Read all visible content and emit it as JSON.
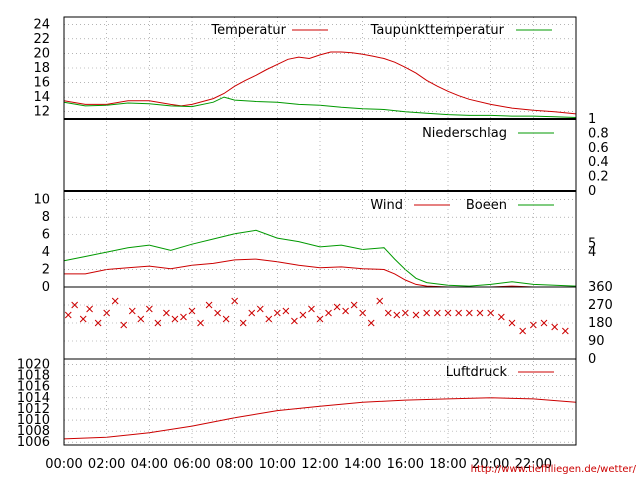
{
  "footer_url": "http://www.tiefflliegen.de/wetter/",
  "colors": {
    "red": "#cc0000",
    "green": "#009900",
    "grid": "#888888",
    "frame": "#000000"
  },
  "x_axis": {
    "range_hours": [
      0,
      24
    ],
    "tick_labels": [
      "00:00",
      "02:00",
      "04:00",
      "06:00",
      "08:00",
      "10:00",
      "12:00",
      "14:00",
      "16:00",
      "18:00",
      "20:00",
      "22:00"
    ]
  },
  "chart_data": [
    {
      "panel": "temperature",
      "type": "line",
      "ylim": [
        11,
        25
      ],
      "yticks": [
        12,
        14,
        16,
        18,
        20,
        22,
        24
      ],
      "legend_placement": "top",
      "series": [
        {
          "name": "Temperatur",
          "color": "red",
          "x": [
            0,
            1,
            2,
            3,
            4,
            5,
            5.5,
            6,
            6.5,
            7,
            7.5,
            8,
            8.5,
            9,
            9.5,
            10,
            10.5,
            11,
            11.5,
            12,
            12.5,
            13,
            13.5,
            14,
            14.5,
            15,
            15.5,
            16,
            16.5,
            17,
            17.5,
            18,
            18.5,
            19,
            20,
            21,
            22,
            23,
            24
          ],
          "y": [
            13.5,
            13.0,
            13.0,
            13.5,
            13.5,
            13.0,
            12.8,
            13.0,
            13.4,
            13.8,
            14.5,
            15.5,
            16.3,
            17.0,
            17.8,
            18.5,
            19.2,
            19.5,
            19.3,
            19.8,
            20.2,
            20.2,
            20.1,
            19.9,
            19.6,
            19.3,
            18.8,
            18.1,
            17.3,
            16.3,
            15.5,
            14.8,
            14.2,
            13.7,
            13.0,
            12.5,
            12.2,
            12.0,
            11.7
          ]
        },
        {
          "name": "Taupunkttemperatur",
          "color": "green",
          "x": [
            0,
            1,
            2,
            3,
            4,
            5,
            6,
            7,
            7.5,
            8,
            9,
            10,
            11,
            12,
            13,
            14,
            15,
            16,
            17,
            18,
            19,
            20,
            21,
            22,
            23,
            24
          ],
          "y": [
            13.3,
            12.8,
            12.9,
            13.2,
            13.1,
            12.8,
            12.7,
            13.3,
            14.0,
            13.6,
            13.4,
            13.3,
            13.0,
            12.9,
            12.6,
            12.4,
            12.3,
            12.0,
            11.8,
            11.6,
            11.5,
            11.5,
            11.4,
            11.4,
            11.3,
            11.2
          ]
        }
      ]
    },
    {
      "panel": "precipitation",
      "type": "line",
      "ylim": [
        0,
        1
      ],
      "yticks": [
        "0",
        "0.2",
        "0.4",
        "0.6",
        "0.8",
        "1"
      ],
      "series": [
        {
          "name": "Niederschlag",
          "color": "green",
          "x": [
            0,
            24
          ],
          "y": [
            0,
            0
          ]
        }
      ]
    },
    {
      "panel": "wind",
      "type": "line",
      "ylim": [
        0,
        11
      ],
      "yticks_left": [
        0,
        2,
        4,
        6,
        8,
        10
      ],
      "yticks_right": [
        4,
        5
      ],
      "series": [
        {
          "name": "Wind",
          "color": "red",
          "x": [
            0,
            1,
            2,
            3,
            4,
            5,
            6,
            7,
            8,
            9,
            10,
            11,
            12,
            13,
            14,
            15,
            15.5,
            16,
            16.5,
            17,
            18,
            19,
            20,
            21,
            22,
            23,
            24
          ],
          "y": [
            1.5,
            1.5,
            2,
            2.2,
            2.4,
            2.1,
            2.5,
            2.7,
            3.1,
            3.2,
            2.9,
            2.5,
            2.2,
            2.3,
            2.1,
            2.0,
            1.5,
            0.8,
            0.3,
            0.1,
            0,
            0,
            0,
            0.1,
            0,
            0,
            0
          ]
        },
        {
          "name": "Boeen",
          "color": "green",
          "x": [
            0,
            1,
            2,
            3,
            4,
            5,
            6,
            7,
            8,
            9,
            10,
            11,
            12,
            13,
            14,
            15,
            15.5,
            16,
            16.5,
            17,
            18,
            19,
            20,
            21,
            22,
            23,
            24
          ],
          "y": [
            3,
            3.5,
            4,
            4.5,
            4.8,
            4.2,
            4.9,
            5.5,
            6.1,
            6.5,
            5.6,
            5.2,
            4.6,
            4.8,
            4.3,
            4.5,
            3.2,
            2.0,
            1.0,
            0.5,
            0.2,
            0.1,
            0.3,
            0.6,
            0.3,
            0.2,
            0.1
          ]
        }
      ]
    },
    {
      "panel": "wind_direction",
      "type": "scatter",
      "ylim": [
        0,
        360
      ],
      "yticks_right": [
        0,
        90,
        180,
        270,
        360
      ],
      "series": [
        {
          "name": "",
          "color": "red",
          "marker": "x",
          "x": [
            0.2,
            0.5,
            0.9,
            1.2,
            1.6,
            2.0,
            2.4,
            2.8,
            3.2,
            3.6,
            4.0,
            4.4,
            4.8,
            5.2,
            5.6,
            6.0,
            6.4,
            6.8,
            7.2,
            7.6,
            8.0,
            8.4,
            8.8,
            9.2,
            9.6,
            10.0,
            10.4,
            10.8,
            11.2,
            11.6,
            12.0,
            12.4,
            12.8,
            13.2,
            13.6,
            14.0,
            14.4,
            14.8,
            15.2,
            15.6,
            16.0,
            16.5,
            17.0,
            17.5,
            18.0,
            18.5,
            19.0,
            19.5,
            20.0,
            20.5,
            21.0,
            21.5,
            22.0,
            22.5,
            23.0,
            23.5
          ],
          "y": [
            220,
            270,
            200,
            250,
            180,
            230,
            290,
            170,
            240,
            200,
            250,
            180,
            230,
            200,
            210,
            240,
            180,
            270,
            230,
            200,
            290,
            180,
            230,
            250,
            200,
            230,
            240,
            190,
            220,
            250,
            200,
            230,
            260,
            240,
            270,
            230,
            180,
            290,
            230,
            220,
            230,
            220,
            230,
            230,
            230,
            230,
            230,
            230,
            230,
            210,
            180,
            140,
            170,
            180,
            160,
            140
          ]
        }
      ]
    },
    {
      "panel": "pressure",
      "type": "line",
      "ylim": [
        1005.5,
        1021
      ],
      "yticks": [
        1006,
        1008,
        1010,
        1012,
        1014,
        1016,
        1018,
        1020
      ],
      "series": [
        {
          "name": "Luftdruck",
          "color": "red",
          "x": [
            0,
            2,
            4,
            6,
            8,
            10,
            12,
            14,
            16,
            18,
            20,
            22,
            24
          ],
          "y": [
            1006.6,
            1006.9,
            1007.7,
            1008.9,
            1010.4,
            1011.7,
            1012.5,
            1013.2,
            1013.6,
            1013.8,
            1014.0,
            1013.8,
            1013.2
          ]
        }
      ]
    }
  ]
}
